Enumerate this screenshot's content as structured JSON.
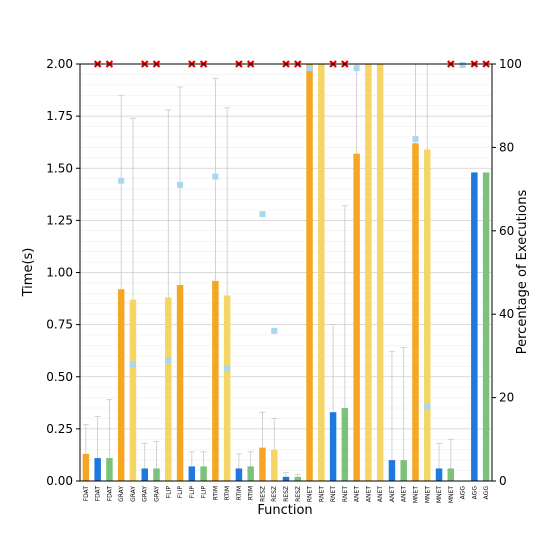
{
  "chart_data": {
    "type": "bar",
    "xlabel": "Function",
    "ylabel": "Time(s)",
    "y2label": "Percentage of Executions",
    "ylim": [
      0,
      2.0
    ],
    "y2lim": [
      0,
      100
    ],
    "yticks": [
      "0.00",
      "0.25",
      "0.50",
      "0.75",
      "1.00",
      "1.25",
      "1.50",
      "1.75",
      "2.00"
    ],
    "y2ticks": [
      "0",
      "20",
      "40",
      "60",
      "80",
      "100"
    ],
    "grid": true,
    "colors": {
      "orange": "#f5a623",
      "yellow": "#f5d565",
      "blue": "#1f77e0",
      "green": "#7cc27c",
      "marker": "#a8d8f0",
      "red": "#e00000",
      "errbar": "#c8c8c8"
    },
    "bars": [
      {
        "label": "FDAT",
        "color": "orange",
        "value": 0.13,
        "err": 0.27,
        "pct": null,
        "red": false
      },
      {
        "label": "FDAT",
        "color": "blue",
        "value": 0.11,
        "err": 0.31,
        "pct": null,
        "red": true
      },
      {
        "label": "FDAT",
        "color": "green",
        "value": 0.11,
        "err": 0.39,
        "pct": null,
        "red": true
      },
      {
        "label": "GRAY",
        "color": "orange",
        "value": 0.92,
        "err": 1.85,
        "pct": 72,
        "red": false
      },
      {
        "label": "GRAY",
        "color": "yellow",
        "value": 0.87,
        "err": 1.74,
        "pct": 28,
        "red": false
      },
      {
        "label": "GRAY",
        "color": "blue",
        "value": 0.06,
        "err": 0.18,
        "pct": null,
        "red": true
      },
      {
        "label": "GRAY",
        "color": "green",
        "value": 0.06,
        "err": 0.19,
        "pct": null,
        "red": true
      },
      {
        "label": "FLIP",
        "color": "yellow",
        "value": 0.88,
        "err": 1.78,
        "pct": 29,
        "red": false
      },
      {
        "label": "FLIP",
        "color": "orange",
        "value": 0.94,
        "err": 1.89,
        "pct": 71,
        "red": false
      },
      {
        "label": "FLIP",
        "color": "blue",
        "value": 0.07,
        "err": 0.14,
        "pct": null,
        "red": true
      },
      {
        "label": "FLIP",
        "color": "green",
        "value": 0.07,
        "err": 0.14,
        "pct": null,
        "red": true
      },
      {
        "label": "RTIM",
        "color": "orange",
        "value": 0.96,
        "err": 1.93,
        "pct": 73,
        "red": false
      },
      {
        "label": "RTIM",
        "color": "yellow",
        "value": 0.89,
        "err": 1.79,
        "pct": 27,
        "red": false
      },
      {
        "label": "RTIM",
        "color": "blue",
        "value": 0.06,
        "err": 0.13,
        "pct": null,
        "red": true
      },
      {
        "label": "RTIM",
        "color": "green",
        "value": 0.07,
        "err": 0.14,
        "pct": null,
        "red": true
      },
      {
        "label": "RESZ",
        "color": "orange",
        "value": 0.16,
        "err": 0.33,
        "pct": 64,
        "red": false
      },
      {
        "label": "RESZ",
        "color": "yellow",
        "value": 0.15,
        "err": 0.3,
        "pct": 36,
        "red": false
      },
      {
        "label": "RESZ",
        "color": "blue",
        "value": 0.02,
        "err": 0.04,
        "pct": null,
        "red": true
      },
      {
        "label": "RESZ",
        "color": "green",
        "value": 0.02,
        "err": 0.03,
        "pct": null,
        "red": true
      },
      {
        "label": "RNET",
        "color": "orange",
        "value": 2.0,
        "err": 2.0,
        "pct": 99,
        "red": false
      },
      {
        "label": "RNET",
        "color": "yellow",
        "value": 2.0,
        "err": 2.0,
        "pct": null,
        "red": false
      },
      {
        "label": "RNET",
        "color": "blue",
        "value": 0.33,
        "err": 0.75,
        "pct": null,
        "red": true
      },
      {
        "label": "RNET",
        "color": "green",
        "value": 0.35,
        "err": 1.32,
        "pct": null,
        "red": true
      },
      {
        "label": "ANET",
        "color": "orange",
        "value": 1.57,
        "err": 2.0,
        "pct": 99,
        "red": false
      },
      {
        "label": "ANET",
        "color": "yellow",
        "value": 2.0,
        "err": 2.0,
        "pct": null,
        "red": false
      },
      {
        "label": "ANET",
        "color": "yellow",
        "value": 2.0,
        "err": 2.0,
        "pct": null,
        "red": false
      },
      {
        "label": "ANET",
        "color": "blue",
        "value": 0.1,
        "err": 0.62,
        "pct": null,
        "red": false
      },
      {
        "label": "ANET",
        "color": "green",
        "value": 0.1,
        "err": 0.64,
        "pct": null,
        "red": false
      },
      {
        "label": "MNET",
        "color": "orange",
        "value": 1.62,
        "err": 2.0,
        "pct": 82,
        "red": false
      },
      {
        "label": "MNET",
        "color": "yellow",
        "value": 1.59,
        "err": 2.0,
        "pct": 18,
        "red": false
      },
      {
        "label": "MNET",
        "color": "blue",
        "value": 0.06,
        "err": 0.18,
        "pct": null,
        "red": false
      },
      {
        "label": "MNET",
        "color": "green",
        "value": 0.06,
        "err": 0.2,
        "pct": null,
        "red": true
      },
      {
        "label": "AGG",
        "color": "orange",
        "value": 0.0,
        "err": 0.0,
        "pct": 100,
        "red": false
      },
      {
        "label": "AGG",
        "color": "blue",
        "value": 1.48,
        "err": 1.48,
        "pct": null,
        "red": true
      },
      {
        "label": "AGG",
        "color": "green",
        "value": 1.48,
        "err": 1.48,
        "pct": null,
        "red": true
      }
    ]
  }
}
